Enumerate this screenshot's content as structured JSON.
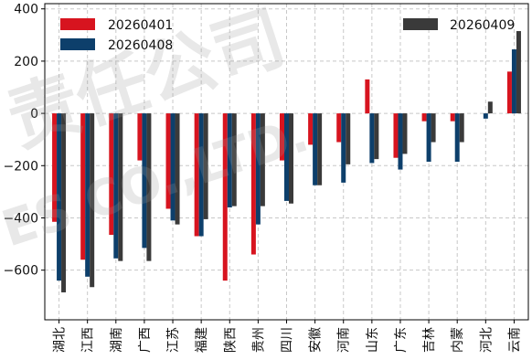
{
  "chart_data": {
    "type": "bar",
    "categories": [
      "湖北",
      "江西",
      "湖南",
      "广西",
      "江苏",
      "福建",
      "陕西",
      "贵州",
      "四川",
      "安徽",
      "河南",
      "山东",
      "广东",
      "吉林",
      "内蒙",
      "河北",
      "云南"
    ],
    "series": [
      {
        "name": "20260401",
        "color": "#d7141f",
        "values": [
          -415,
          -560,
          -465,
          -180,
          -365,
          -470,
          -640,
          -540,
          -180,
          -120,
          -110,
          130,
          -170,
          -30,
          -30,
          0,
          160
        ]
      },
      {
        "name": "20260408",
        "color": "#0d3f6b",
        "values": [
          -640,
          -625,
          -555,
          -515,
          -410,
          -470,
          -360,
          -425,
          -335,
          -275,
          -265,
          -190,
          -215,
          -185,
          -185,
          -20,
          245
        ]
      },
      {
        "name": "20260409",
        "color": "#3a3a3a",
        "values": [
          -685,
          -665,
          -565,
          -565,
          -425,
          -405,
          -355,
          -355,
          -345,
          -275,
          -195,
          -175,
          -155,
          -110,
          -110,
          45,
          315
        ]
      }
    ],
    "ylim": [
      -790,
      420
    ],
    "yticks": [
      -600,
      -400,
      -200,
      0,
      200,
      400
    ],
    "ytick_labels": [
      "−600",
      "−400",
      "−200",
      "0",
      "200",
      "400"
    ],
    "grid": true,
    "legend_placement": [
      "top-left",
      "top-left",
      "top-right"
    ]
  },
  "watermark": {
    "line1": "责任公司",
    "line2": "ES CO.,LTD."
  }
}
